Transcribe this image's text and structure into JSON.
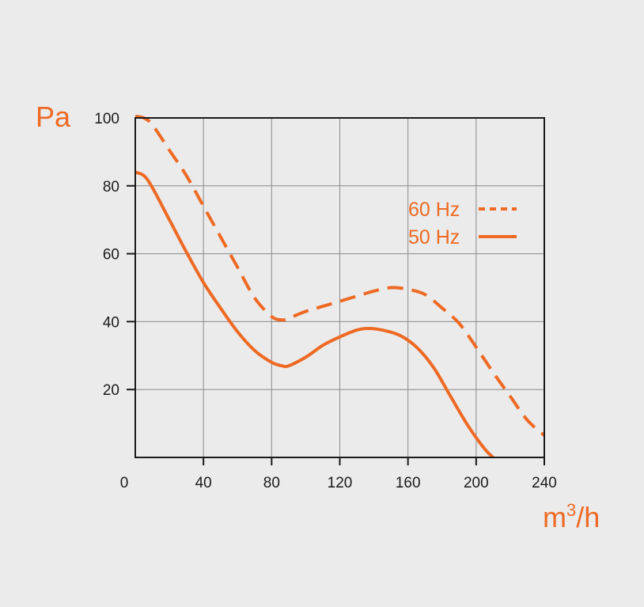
{
  "chart_data": {
    "type": "line",
    "title": "",
    "ylabel": "Pa",
    "xlabel_base": "m",
    "xlabel_sup": "3",
    "xlabel_tail": "/h",
    "xlim": [
      0,
      240
    ],
    "ylim": [
      0,
      100
    ],
    "x_ticks": [
      0,
      40,
      80,
      120,
      160,
      200,
      240
    ],
    "y_ticks": [
      20,
      40,
      60,
      80,
      100
    ],
    "grid": true,
    "legend_position": "right",
    "accent_color": "#ee6a24",
    "series": [
      {
        "name": "60 Hz",
        "style": "dashed",
        "x": [
          0,
          5,
          10,
          20,
          30,
          40,
          50,
          60,
          70,
          80,
          86,
          90,
          100,
          110,
          120,
          130,
          140,
          150,
          160,
          170,
          180,
          190,
          200,
          210,
          220,
          230,
          240
        ],
        "y": [
          100.5,
          100,
          98,
          90.5,
          83,
          74,
          65,
          56,
          47,
          41.5,
          40.5,
          41,
          43,
          44.5,
          46,
          47.5,
          49,
          50,
          49.5,
          48,
          44,
          39.5,
          32.5,
          25,
          18,
          11,
          6.5
        ]
      },
      {
        "name": "50 Hz",
        "style": "solid",
        "x": [
          0,
          5,
          10,
          20,
          30,
          40,
          50,
          60,
          70,
          80,
          86,
          90,
          100,
          110,
          120,
          130,
          137,
          145,
          155,
          165,
          175,
          185,
          195,
          205,
          210
        ],
        "y": [
          84,
          83,
          79.5,
          70,
          60.5,
          51.5,
          44,
          37,
          31.5,
          28,
          27,
          27,
          29.5,
          33,
          35.5,
          37.5,
          38,
          37.5,
          36,
          32.5,
          26.5,
          18,
          9.5,
          2.5,
          0
        ]
      }
    ]
  }
}
